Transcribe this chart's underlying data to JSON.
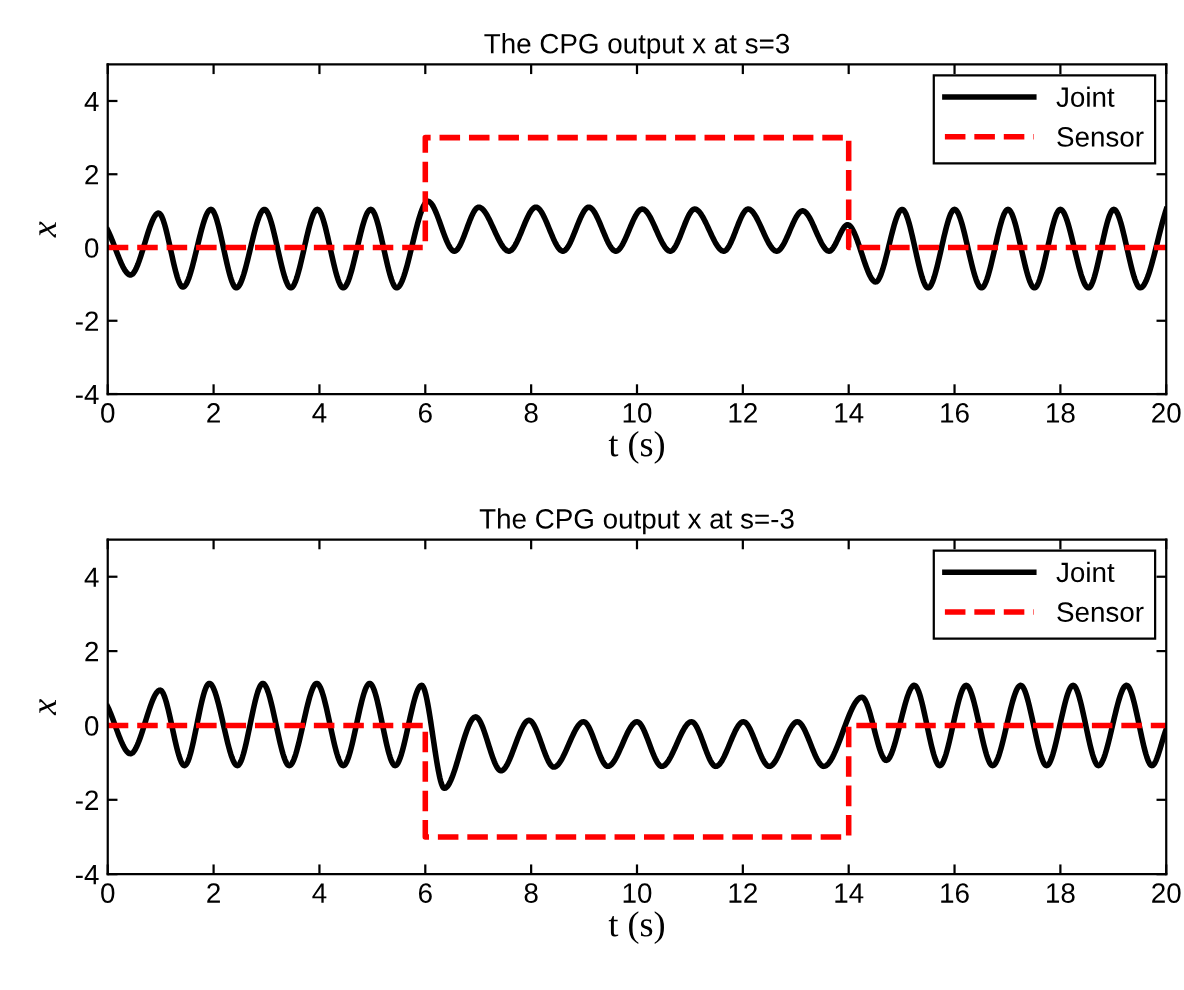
{
  "chart_data": [
    {
      "type": "line",
      "title": "The CPG output x at s=3",
      "xlabel": "t (s)",
      "ylabel": "x",
      "xlim": [
        0,
        20
      ],
      "ylim": [
        -4,
        5
      ],
      "xticks": [
        0,
        2,
        4,
        6,
        8,
        10,
        12,
        14,
        16,
        18,
        20
      ],
      "yticks": [
        -4,
        -2,
        0,
        2,
        4
      ],
      "legend": "top right",
      "grid": false,
      "series": [
        {
          "name": "Joint",
          "color": "#000000",
          "line_style": "solid",
          "x": [
            0,
            0.43,
            0.96,
            1.42,
            1.95,
            2.43,
            2.96,
            3.46,
            3.96,
            4.45,
            4.97,
            5.46,
            6.05,
            6.55,
            7.01,
            7.58,
            8.09,
            8.6,
            9.09,
            9.6,
            10.1,
            10.63,
            11.09,
            11.64,
            12.1,
            12.64,
            13.13,
            13.63,
            13.98,
            14.51,
            15.01,
            15.5,
            16.0,
            16.51,
            17.01,
            17.51,
            18.0,
            18.53,
            19.01,
            19.51,
            20
          ],
          "values": [
            0.47,
            -0.75,
            0.94,
            -1.08,
            1.04,
            -1.1,
            1.04,
            -1.1,
            1.04,
            -1.1,
            1.04,
            -1.1,
            1.26,
            -0.1,
            1.1,
            -0.1,
            1.1,
            -0.1,
            1.1,
            -0.1,
            1.05,
            -0.1,
            1.05,
            -0.1,
            1.05,
            -0.1,
            1.0,
            -0.1,
            0.62,
            -0.94,
            1.04,
            -1.1,
            1.04,
            -1.1,
            1.04,
            -1.1,
            1.04,
            -1.1,
            1.04,
            -1.1,
            1.04
          ]
        },
        {
          "name": "Sensor",
          "color": "#ff0000",
          "line_style": "dashed",
          "x": [
            0,
            6,
            6,
            14,
            14,
            20
          ],
          "values": [
            0,
            0,
            3,
            3,
            0,
            0
          ]
        }
      ]
    },
    {
      "type": "line",
      "title": "The CPG output x at s=-3",
      "xlabel": "t (s)",
      "ylabel": "x",
      "xlim": [
        0,
        20
      ],
      "ylim": [
        -4,
        5
      ],
      "xticks": [
        0,
        2,
        4,
        6,
        8,
        10,
        12,
        14,
        16,
        18,
        20
      ],
      "yticks": [
        -4,
        -2,
        0,
        2,
        4
      ],
      "legend": "top right",
      "grid": false,
      "series": [
        {
          "name": "Joint",
          "color": "#000000",
          "line_style": "solid",
          "x": [
            0,
            0.43,
            0.99,
            1.45,
            1.92,
            2.45,
            2.93,
            3.43,
            3.95,
            4.45,
            4.95,
            5.43,
            5.93,
            6.36,
            6.95,
            7.43,
            7.96,
            8.43,
            8.99,
            9.45,
            10.0,
            10.47,
            11.03,
            11.49,
            12.01,
            12.5,
            13.03,
            13.53,
            14.25,
            14.71,
            15.24,
            15.72,
            16.22,
            16.72,
            17.25,
            17.74,
            18.24,
            18.72,
            19.25,
            19.73,
            20
          ],
          "values": [
            0.5,
            -0.76,
            0.95,
            -1.08,
            1.13,
            -1.08,
            1.13,
            -1.08,
            1.13,
            -1.08,
            1.13,
            -1.08,
            1.08,
            -1.69,
            0.23,
            -1.22,
            0.14,
            -1.12,
            0.1,
            -1.1,
            0.1,
            -1.1,
            0.1,
            -1.1,
            0.1,
            -1.1,
            0.1,
            -1.1,
            0.76,
            -0.94,
            1.08,
            -1.08,
            1.08,
            -1.08,
            1.08,
            -1.08,
            1.08,
            -1.08,
            1.08,
            -1.08,
            -0.1
          ]
        },
        {
          "name": "Sensor",
          "color": "#ff0000",
          "line_style": "dashed",
          "x": [
            0,
            6,
            6,
            14,
            14,
            20
          ],
          "values": [
            0,
            0,
            -3,
            -3,
            0,
            0
          ]
        }
      ]
    }
  ]
}
